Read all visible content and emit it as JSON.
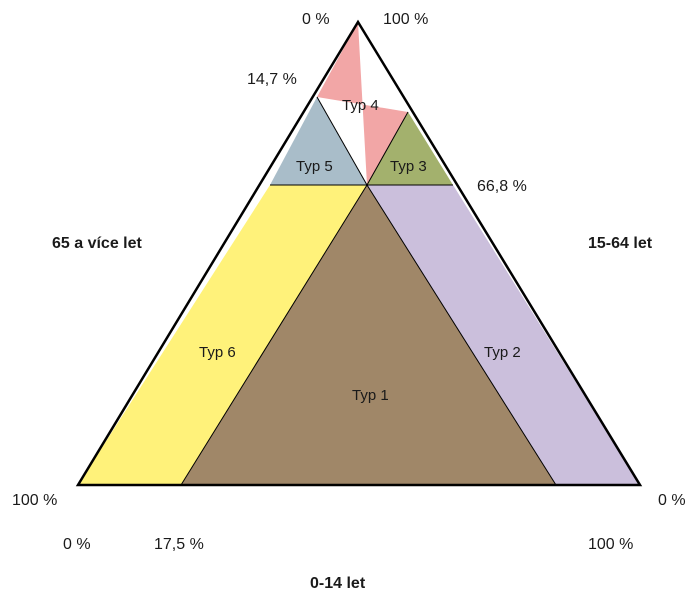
{
  "diagram": {
    "axes": {
      "left": "65 a více let",
      "right": "15-64 let",
      "bottom": "0-14 let"
    },
    "ticks": {
      "top_left": "0 %",
      "top_right": "100 %",
      "left_upper": "14,7 %",
      "right_upper": "66,8 %",
      "left_bottom": "100 %",
      "right_bottom": "0 %",
      "bottom_left": "0 %",
      "bottom_mid": "17,5 %",
      "bottom_right": "100 %"
    },
    "regions": [
      {
        "id": "typ1",
        "label": "Typ 1",
        "color": "#a08768"
      },
      {
        "id": "typ2",
        "label": "Typ 2",
        "color": "#cbbfdc"
      },
      {
        "id": "typ3",
        "label": "Typ 3",
        "color": "#a3b16d"
      },
      {
        "id": "typ4",
        "label": "Typ 4",
        "color": "#f2a6a6"
      },
      {
        "id": "typ5",
        "label": "Typ 5",
        "color": "#a9bdc9"
      },
      {
        "id": "typ6",
        "label": "Typ 6",
        "color": "#fff27a"
      }
    ],
    "outline_color": "#000000"
  }
}
